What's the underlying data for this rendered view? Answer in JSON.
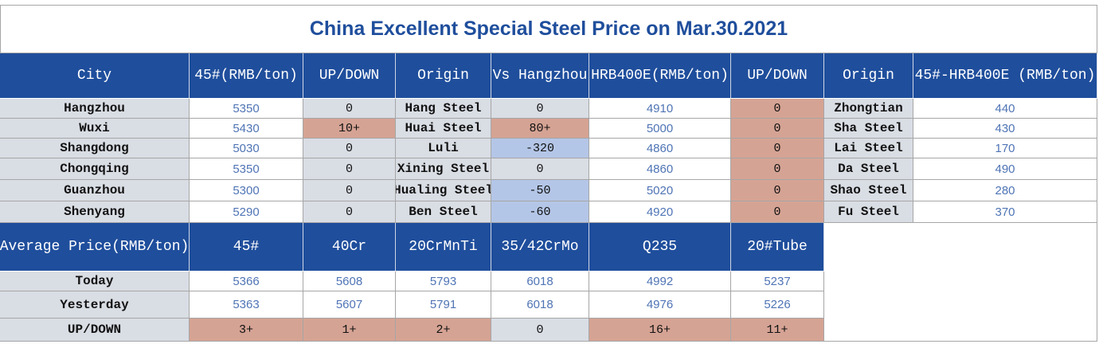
{
  "title": "China Excellent Special Steel Price on Mar.30.2021",
  "table": {
    "header": [
      "City",
      "45#(RMB/ton)",
      "UP/DOWN",
      "Origin",
      "Vs Hangzhou",
      "HRB400E(RMB/ton)",
      "UP/DOWN",
      "Origin",
      "45#-HRB400E (RMB/ton)"
    ],
    "rows": [
      [
        "Hangzhou",
        "5350",
        "0",
        "Hang Steel",
        "0",
        "4910",
        "0",
        "Zhongtian",
        "440"
      ],
      [
        "Wuxi",
        "5430",
        "10+",
        "Huai Steel",
        "80+",
        "5000",
        "0",
        "Sha Steel",
        "430"
      ],
      [
        "Shangdong",
        "5030",
        "0",
        "Luli",
        "-320",
        "4860",
        "0",
        "Lai Steel",
        "170"
      ],
      [
        "Chongqing",
        "5350",
        "0",
        "Xining Steel",
        "0",
        "4860",
        "0",
        "Da Steel",
        "490"
      ],
      [
        "Guanzhou",
        "5300",
        "0",
        "Hualing Steel",
        "-50",
        "5020",
        "0",
        "Shao Steel",
        "280"
      ],
      [
        "Shenyang",
        "5290",
        "0",
        "Ben Steel",
        "-60",
        "4920",
        "0",
        "Fu Steel",
        "370"
      ]
    ]
  },
  "average_table": {
    "header": [
      "Average Price(RMB/ton)",
      "45#",
      "40Cr",
      "20CrMnTi",
      "35/42CrMo",
      "Q235",
      "20#Tube"
    ],
    "rows": [
      [
        "Today",
        "5366",
        "5608",
        "5793",
        "6018",
        "4992",
        "5237"
      ],
      [
        "Yesterday",
        "5363",
        "5607",
        "5791",
        "6018",
        "4976",
        "5226"
      ],
      [
        "UP/DOWN",
        "3+",
        "1+",
        "2+",
        "0",
        "16+",
        "11+"
      ]
    ]
  }
}
